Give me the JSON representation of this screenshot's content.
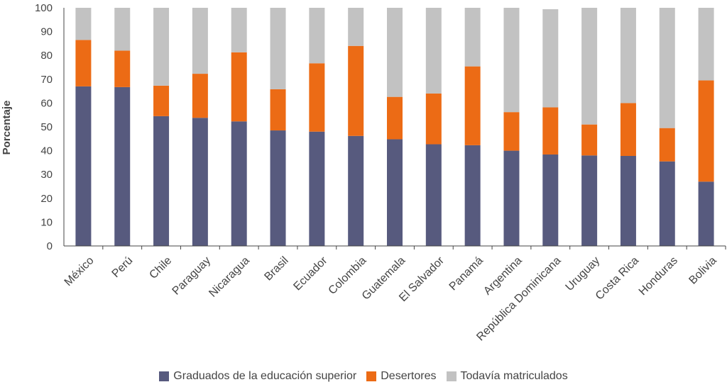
{
  "chart_data": {
    "type": "bar",
    "stacked": true,
    "ylabel": "Porcentaje",
    "xlabel": "",
    "ylim": [
      0,
      100
    ],
    "yticks": [
      0,
      10,
      20,
      30,
      40,
      50,
      60,
      70,
      80,
      90,
      100
    ],
    "categories": [
      "México",
      "Perú",
      "Chile",
      "Paraguay",
      "Nicaragua",
      "Brasil",
      "Ecuador",
      "Colombia",
      "Guatemala",
      "El Salvador",
      "Panamá",
      "Argentina",
      "República Dominicana",
      "Uruguay",
      "Costa Rica",
      "Honduras",
      "Bolivia"
    ],
    "series": [
      {
        "name": "Graduados de la educación superior",
        "color": "#575a7e",
        "values": [
          67,
          66.7,
          54.5,
          53.8,
          52.3,
          48.5,
          48,
          46.2,
          44.8,
          42.7,
          42.3,
          40,
          38.4,
          38,
          37.8,
          35.5,
          27
        ]
      },
      {
        "name": "Desertores",
        "color": "#ec6b15",
        "values": [
          19.5,
          15.3,
          12.8,
          18.5,
          29,
          17.3,
          28.7,
          37.8,
          17.8,
          21.3,
          33.1,
          16.2,
          19.8,
          13,
          22.2,
          14,
          42.5
        ]
      },
      {
        "name": "Todavía matriculados",
        "color": "#c2c2c2",
        "values": [
          13.5,
          18,
          32.7,
          27.7,
          18.7,
          34.2,
          23.3,
          16,
          37.4,
          36,
          24.6,
          43.8,
          41.2,
          49,
          40,
          50.5,
          30.5
        ]
      }
    ],
    "legend_position": "bottom",
    "grid": false
  }
}
